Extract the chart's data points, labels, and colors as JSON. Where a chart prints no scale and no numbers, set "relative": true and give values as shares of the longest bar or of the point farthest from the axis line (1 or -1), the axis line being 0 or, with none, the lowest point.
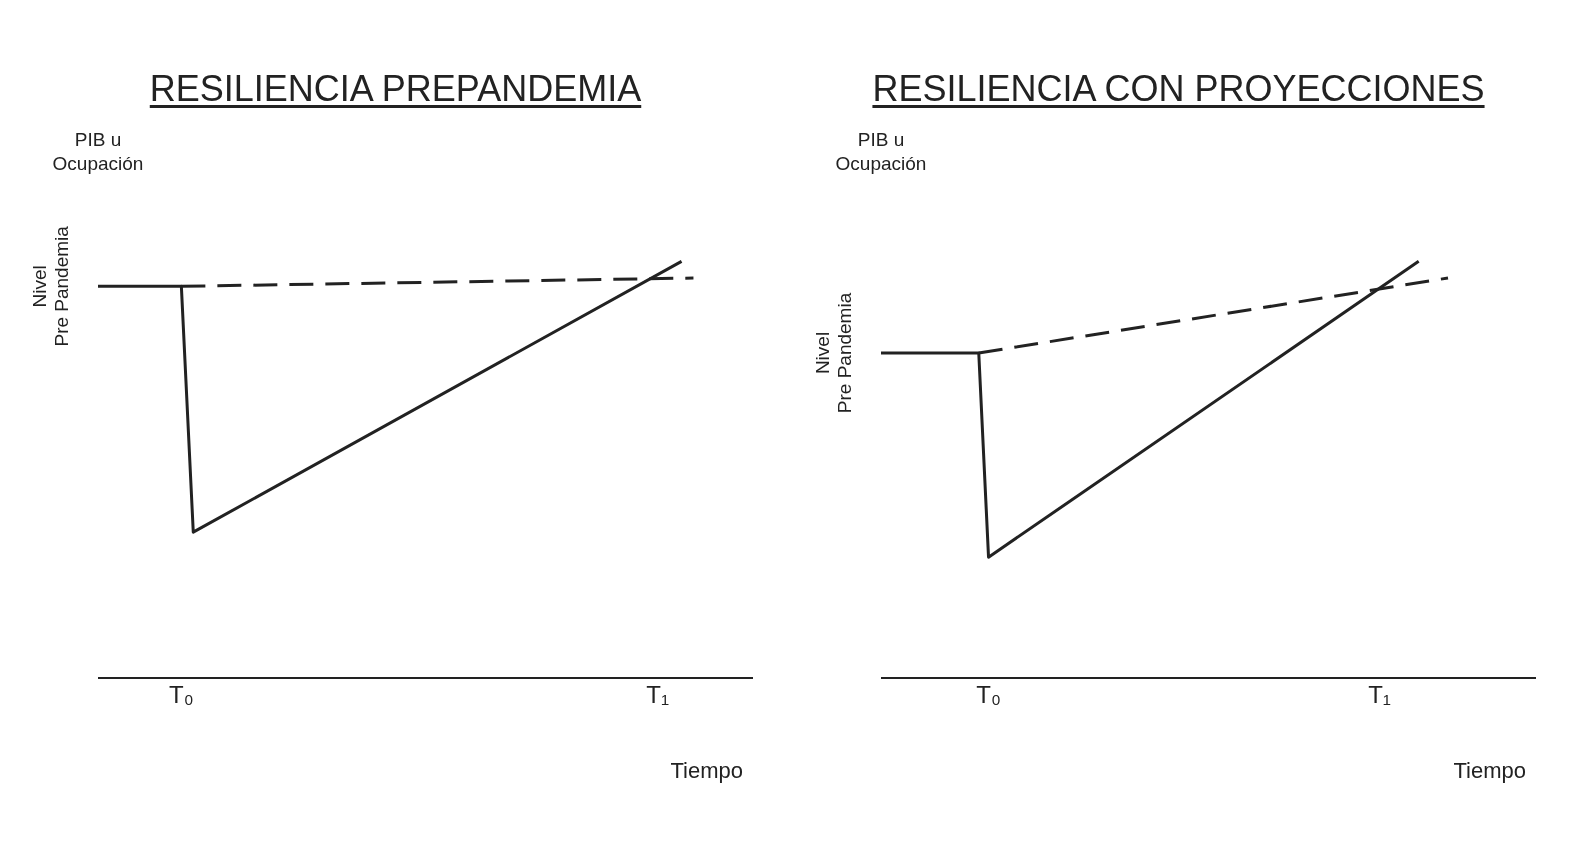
{
  "chart_data": [
    {
      "type": "line",
      "title": "RESILIENCIA PREPANDEMIA",
      "ylabel": "PIB u Ocupación",
      "xlabel": "Tiempo",
      "relative": true,
      "marker": "none",
      "annotations": [
        "Nivel Pre Pandemia"
      ],
      "categories": [
        null,
        null,
        null,
        null,
        null,
        null,
        null,
        "T₀",
        null,
        null,
        null,
        null,
        null,
        null,
        null,
        null,
        null,
        null,
        null,
        null,
        null,
        null,
        null,
        null,
        null,
        null,
        null,
        null,
        null,
        null,
        null,
        null,
        null,
        null,
        null,
        null,
        null,
        null,
        null,
        null,
        null,
        null,
        null,
        null,
        null,
        null,
        null,
        "T₁",
        null,
        null,
        null,
        null,
        null,
        null,
        null,
        null
      ],
      "series": [
        {
          "color": "#222222",
          "line_style": "solid",
          "values": [
            0.94,
            null,
            null,
            null,
            null,
            null,
            null,
            0.94,
            0.35,
            null,
            null,
            null,
            null,
            null,
            null,
            null,
            null,
            null,
            null,
            null,
            null,
            null,
            null,
            null,
            null,
            null,
            null,
            null,
            null,
            null,
            null,
            null,
            null,
            null,
            null,
            null,
            null,
            null,
            null,
            null,
            null,
            null,
            null,
            null,
            null,
            null,
            null,
            null,
            null,
            1,
            null,
            null,
            null,
            null,
            null,
            null
          ]
        },
        {
          "color": "#222222",
          "line_style": "dashed",
          "values": [
            null,
            null,
            null,
            null,
            null,
            null,
            null,
            0.94,
            null,
            null,
            null,
            null,
            null,
            null,
            null,
            null,
            null,
            null,
            null,
            null,
            null,
            null,
            null,
            null,
            null,
            null,
            null,
            null,
            null,
            null,
            null,
            null,
            null,
            null,
            null,
            null,
            null,
            null,
            null,
            null,
            null,
            null,
            null,
            null,
            null,
            null,
            null,
            null,
            null,
            null,
            0.96,
            null,
            null,
            null,
            null,
            null
          ]
        }
      ]
    },
    {
      "type": "line",
      "title": "RESILIENCIA CON PROYECCIONES",
      "ylabel": "PIB u Ocupación",
      "xlabel": "Tiempo",
      "relative": true,
      "marker": "none",
      "annotations": [
        "Nivel Pre Pandemia"
      ],
      "categories": [
        null,
        null,
        null,
        null,
        null,
        null,
        null,
        null,
        null,
        null,
        null,
        "T₀",
        null,
        null,
        null,
        null,
        null,
        null,
        null,
        null,
        null,
        null,
        null,
        null,
        null,
        null,
        null,
        null,
        null,
        null,
        null,
        null,
        null,
        null,
        null,
        null,
        null,
        null,
        null,
        null,
        null,
        null,
        null,
        null,
        null,
        null,
        null,
        null,
        null,
        null,
        null,
        "T₁",
        null,
        null,
        null,
        null,
        null,
        null,
        null,
        null,
        null,
        null,
        null,
        null,
        null,
        null,
        null,
        null
      ],
      "series": [
        {
          "color": "#222222",
          "line_style": "solid",
          "values": [
            0.78,
            null,
            null,
            null,
            null,
            null,
            null,
            null,
            null,
            null,
            0.78,
            0.29,
            null,
            null,
            null,
            null,
            null,
            null,
            null,
            null,
            null,
            null,
            null,
            null,
            null,
            null,
            null,
            null,
            null,
            null,
            null,
            null,
            null,
            null,
            null,
            null,
            null,
            null,
            null,
            null,
            null,
            null,
            null,
            null,
            null,
            null,
            null,
            null,
            null,
            null,
            null,
            null,
            null,
            null,
            null,
            1,
            null,
            null,
            null,
            null,
            null,
            null,
            null,
            null,
            null,
            null,
            null,
            null
          ]
        },
        {
          "color": "#222222",
          "line_style": "dashed",
          "values": [
            null,
            null,
            null,
            null,
            null,
            null,
            null,
            null,
            null,
            null,
            0.78,
            null,
            null,
            null,
            null,
            null,
            null,
            null,
            null,
            null,
            null,
            null,
            null,
            null,
            null,
            null,
            null,
            null,
            null,
            null,
            null,
            null,
            null,
            null,
            null,
            null,
            null,
            null,
            null,
            null,
            null,
            null,
            null,
            null,
            null,
            null,
            null,
            null,
            null,
            null,
            null,
            null,
            null,
            null,
            null,
            null,
            null,
            null,
            0.96,
            null,
            null,
            null,
            null,
            null,
            null,
            null,
            null,
            null
          ]
        }
      ]
    }
  ]
}
